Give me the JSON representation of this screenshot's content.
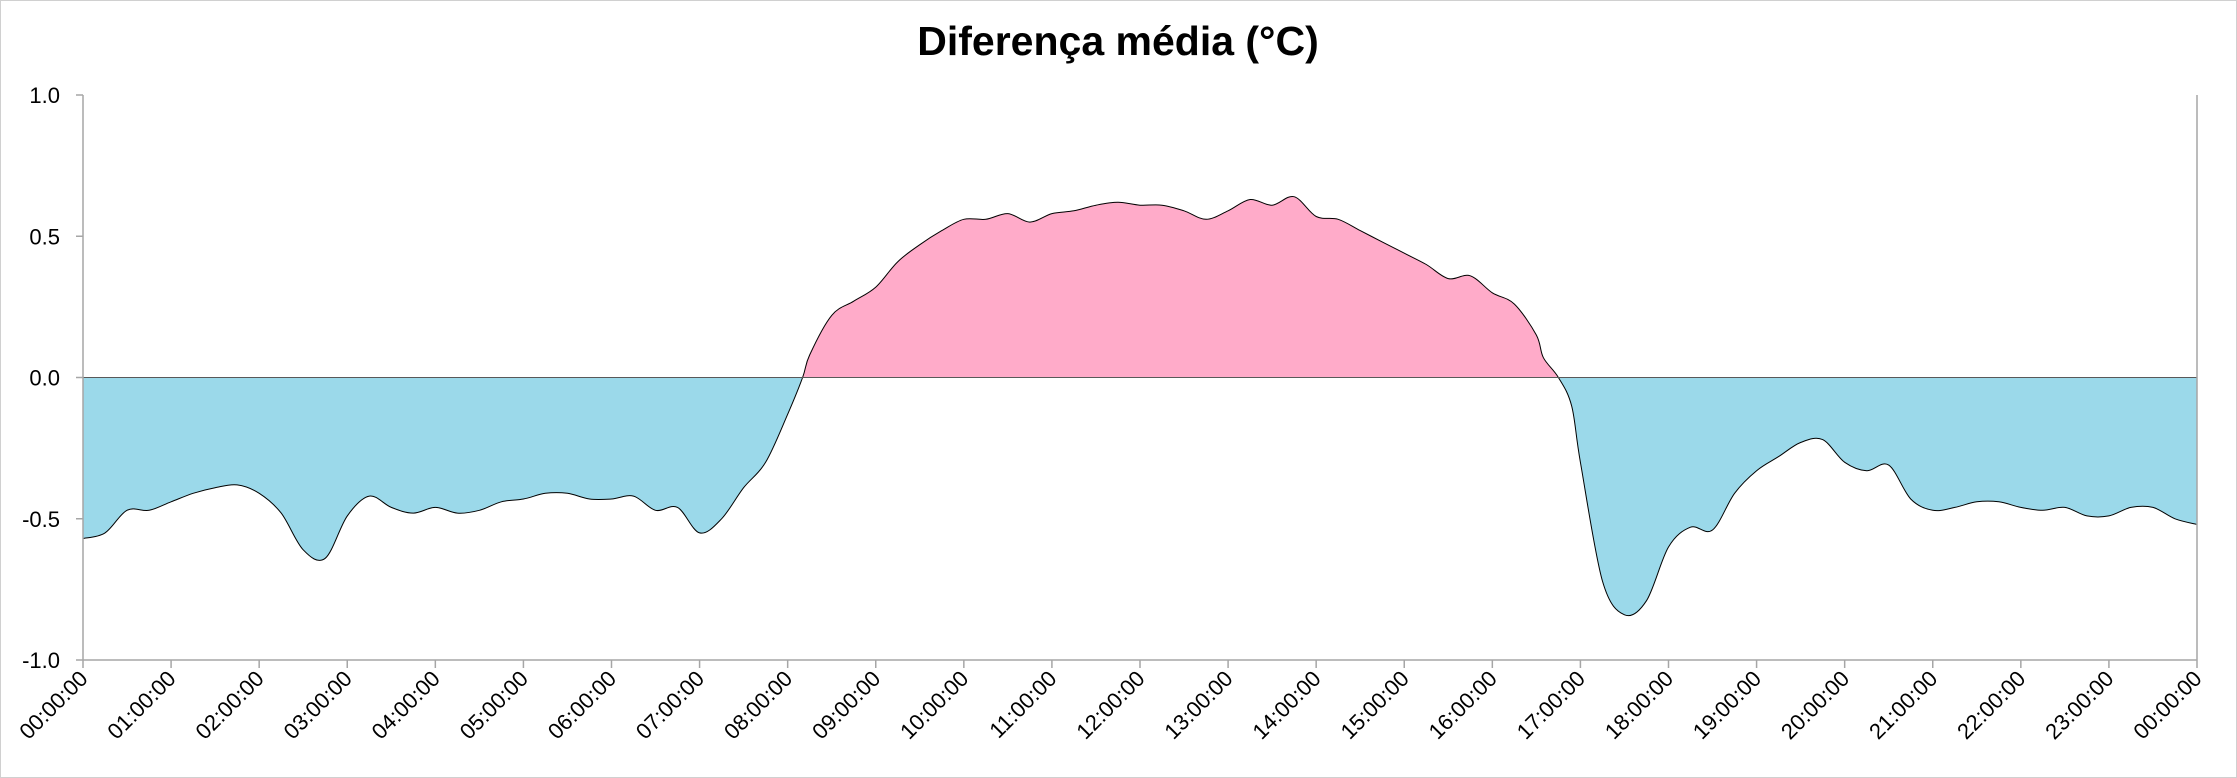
{
  "chart_data": {
    "type": "area",
    "title": "Diferença média (°C)",
    "xlabel": "",
    "ylabel": "",
    "ylim": [
      -1.0,
      1.0
    ],
    "yticks": [
      "1.0",
      "0.5",
      "0.0",
      "-0.5",
      "-1.0"
    ],
    "ytick_values": [
      1.0,
      0.5,
      0.0,
      -0.5,
      -1.0
    ],
    "xlim": [
      0,
      24
    ],
    "xticks": [
      "00:00:00",
      "01:00:00",
      "02:00:00",
      "03:00:00",
      "04:00:00",
      "05:00:00",
      "06:00:00",
      "07:00:00",
      "08:00:00",
      "09:00:00",
      "10:00:00",
      "11:00:00",
      "12:00:00",
      "13:00:00",
      "14:00:00",
      "15:00:00",
      "16:00:00",
      "17:00:00",
      "18:00:00",
      "19:00:00",
      "20:00:00",
      "21:00:00",
      "22:00:00",
      "23:00:00",
      "00:00:00"
    ],
    "grid": false,
    "legend": "none",
    "colors": {
      "positive_fill": "#FFABC9",
      "negative_fill": "#9BD9EA",
      "line": "#000000",
      "axis": "#A6A6A6"
    },
    "series": [
      {
        "x": [
          0.0,
          0.25,
          0.5,
          0.75,
          1.0,
          1.25,
          1.5,
          1.75,
          2.0,
          2.25,
          2.5,
          2.75,
          3.0,
          3.25,
          3.5,
          3.75,
          4.0,
          4.25,
          4.5,
          4.75,
          5.0,
          5.25,
          5.5,
          5.75,
          6.0,
          6.25,
          6.5,
          6.75,
          7.0,
          7.25,
          7.5,
          7.75,
          8.0,
          8.17,
          8.25,
          8.5,
          8.75,
          9.0,
          9.25,
          9.5,
          9.75,
          10.0,
          10.25,
          10.5,
          10.75,
          11.0,
          11.25,
          11.5,
          11.75,
          12.0,
          12.25,
          12.5,
          12.75,
          13.0,
          13.25,
          13.5,
          13.75,
          14.0,
          14.25,
          14.5,
          14.75,
          15.0,
          15.25,
          15.5,
          15.75,
          16.0,
          16.25,
          16.5,
          16.58,
          16.75,
          16.9,
          17.0,
          17.25,
          17.5,
          17.75,
          18.0,
          18.25,
          18.5,
          18.75,
          19.0,
          19.25,
          19.5,
          19.75,
          20.0,
          20.25,
          20.5,
          20.75,
          21.0,
          21.25,
          21.5,
          21.75,
          22.0,
          22.25,
          22.5,
          22.75,
          23.0,
          23.25,
          23.5,
          23.75,
          24.0
        ],
        "y": [
          -0.57,
          -0.55,
          -0.47,
          -0.47,
          -0.44,
          -0.41,
          -0.39,
          -0.38,
          -0.41,
          -0.48,
          -0.61,
          -0.64,
          -0.49,
          -0.42,
          -0.46,
          -0.48,
          -0.46,
          -0.48,
          -0.47,
          -0.44,
          -0.43,
          -0.41,
          -0.41,
          -0.43,
          -0.43,
          -0.42,
          -0.47,
          -0.46,
          -0.55,
          -0.5,
          -0.39,
          -0.3,
          -0.13,
          0.0,
          0.08,
          0.22,
          0.27,
          0.32,
          0.41,
          0.47,
          0.52,
          0.56,
          0.56,
          0.58,
          0.55,
          0.58,
          0.59,
          0.61,
          0.62,
          0.61,
          0.61,
          0.59,
          0.56,
          0.59,
          0.63,
          0.61,
          0.64,
          0.57,
          0.56,
          0.52,
          0.48,
          0.44,
          0.4,
          0.35,
          0.36,
          0.3,
          0.26,
          0.15,
          0.07,
          0.0,
          -0.1,
          -0.3,
          -0.72,
          -0.84,
          -0.79,
          -0.6,
          -0.53,
          -0.54,
          -0.41,
          -0.33,
          -0.28,
          -0.23,
          -0.22,
          -0.3,
          -0.33,
          -0.31,
          -0.43,
          -0.47,
          -0.46,
          -0.44,
          -0.44,
          -0.46,
          -0.47,
          -0.46,
          -0.49,
          -0.49,
          -0.46,
          -0.46,
          -0.5,
          -0.52
        ]
      }
    ]
  }
}
